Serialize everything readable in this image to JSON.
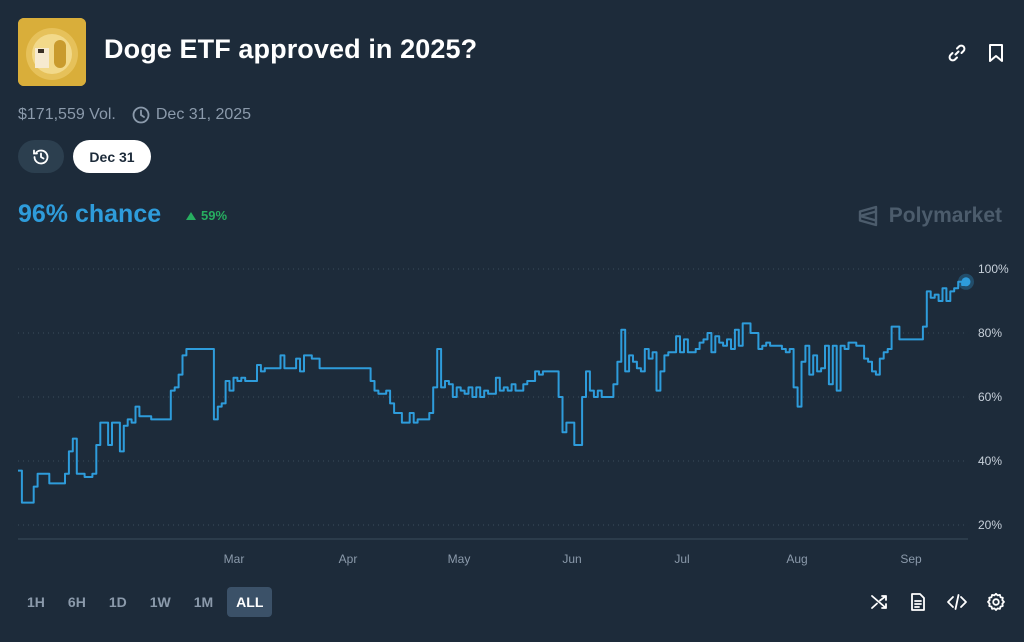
{
  "market": {
    "title": "Doge ETF approved in 2025?",
    "volume": "$171,559 Vol.",
    "end_date": "Dec 31, 2025",
    "date_pill": "Dec 31",
    "chance": "96% chance",
    "change": "59%",
    "brand": "Polymarket"
  },
  "ranges": [
    "1H",
    "6H",
    "1D",
    "1W",
    "1M",
    "ALL"
  ],
  "active_range": "ALL",
  "icons": {
    "link": "link-icon",
    "bookmark": "bookmark-icon",
    "clock": "clock-icon",
    "history": "history-icon",
    "shuffle": "shuffle-icon",
    "document": "document-icon",
    "embed": "code-icon",
    "settings": "gear-icon"
  },
  "colors": {
    "background": "#1d2b3a",
    "line": "#2e9cdb",
    "positive": "#27ae60",
    "muted": "#8b9aab"
  },
  "chart_data": {
    "type": "line",
    "x_labels": [
      "Mar",
      "Apr",
      "May",
      "Jun",
      "Jul",
      "Aug",
      "Sep"
    ],
    "y_ticks": [
      "20%",
      "40%",
      "60%",
      "80%",
      "100%"
    ],
    "ylim": [
      20,
      100
    ],
    "grid": true,
    "series": [
      {
        "values": [
          37,
          27,
          27,
          27,
          32,
          36,
          36,
          36,
          33,
          33,
          33,
          33,
          36,
          43,
          47,
          36,
          36,
          35,
          35,
          36,
          45,
          52,
          52,
          45,
          52,
          52,
          43,
          51,
          53,
          52,
          57,
          54,
          54,
          54,
          53,
          53,
          53,
          53,
          53,
          62,
          63,
          67,
          73,
          75,
          75,
          75,
          75,
          75,
          75,
          75,
          53,
          57,
          58,
          65,
          62,
          66,
          65,
          66,
          65,
          65,
          65,
          70,
          68,
          69,
          69,
          69,
          69,
          73,
          69,
          69,
          69,
          72,
          68,
          73,
          73,
          72,
          72,
          69,
          69,
          69,
          69,
          69,
          69,
          69,
          69,
          69,
          69,
          69,
          69,
          69,
          65,
          62,
          61,
          61,
          62,
          58,
          55,
          55,
          52,
          52,
          55,
          52,
          53,
          53,
          53,
          55,
          63,
          75,
          63,
          65,
          64,
          60,
          63,
          62,
          61,
          63,
          60,
          63,
          60,
          62,
          61,
          61,
          66,
          62,
          63,
          62,
          64,
          62,
          62,
          64,
          65,
          65,
          68,
          67,
          68,
          68,
          68,
          68,
          60,
          49,
          52,
          52,
          45,
          45,
          60,
          68,
          62,
          60,
          62,
          60,
          60,
          60,
          64,
          71,
          81,
          68,
          73,
          71,
          69,
          68,
          75,
          72,
          74,
          62,
          68,
          73,
          74,
          74,
          79,
          74,
          78,
          74,
          74,
          75,
          77,
          78,
          80,
          74,
          79,
          77,
          76,
          78,
          75,
          81,
          76,
          83,
          83,
          80,
          80,
          75,
          76,
          77,
          76,
          76,
          76,
          75,
          74,
          75,
          63,
          57,
          71,
          76,
          67,
          73,
          68,
          69,
          76,
          64,
          76,
          62,
          76,
          75,
          77,
          77,
          76,
          76,
          72,
          71,
          68,
          67,
          72,
          74,
          75,
          82,
          82,
          78,
          78,
          78,
          78,
          78,
          78,
          82,
          93,
          91,
          92,
          90,
          94,
          90,
          93,
          94,
          96,
          95,
          96
        ]
      }
    ]
  }
}
